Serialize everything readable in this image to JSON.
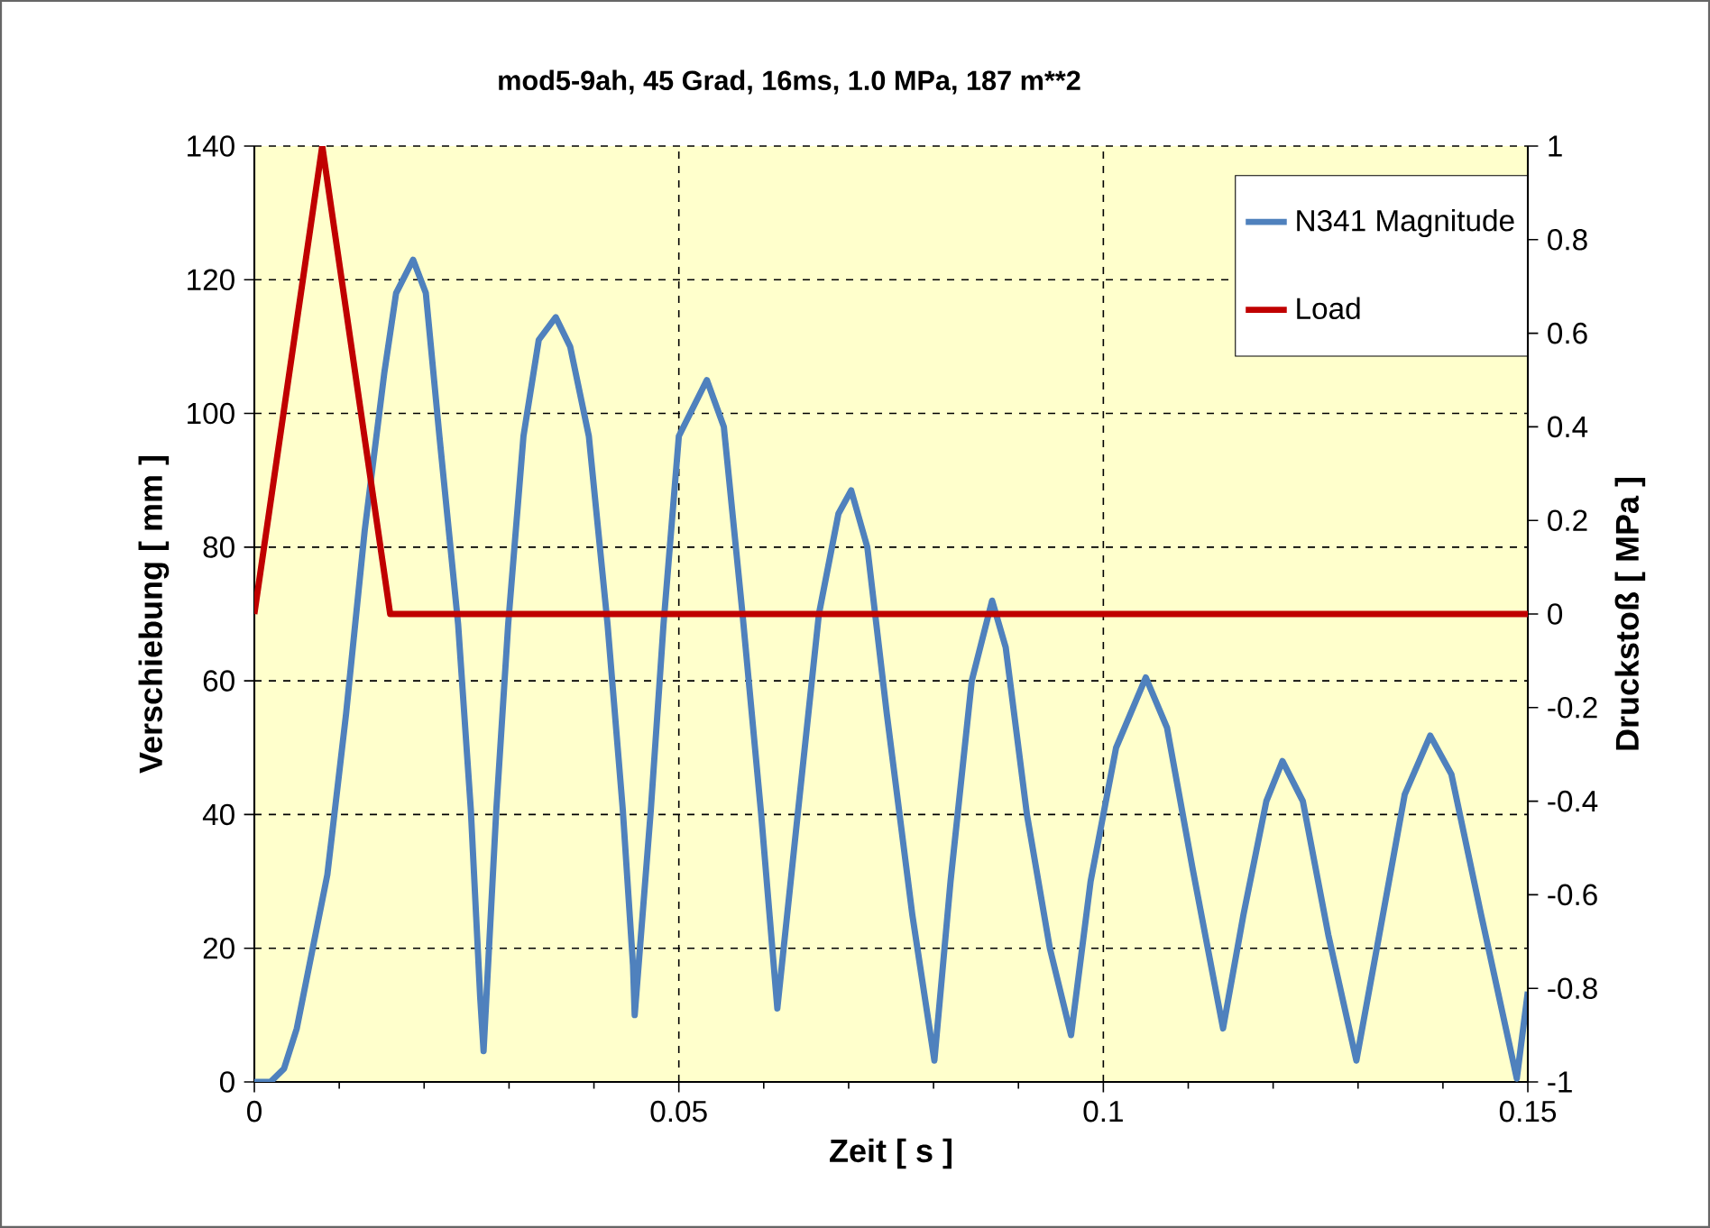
{
  "chart_data": {
    "type": "line",
    "title": "mod5-9ah, 45 Grad,  16ms, 1.0 MPa, 187 m**2",
    "xlabel": "Zeit [ s ]",
    "ylabel": "Verschiebung [ mm ]",
    "y2label": "Druckstoß [ MPa ]",
    "xlim": [
      0,
      0.15
    ],
    "xticks": [
      0,
      0.05,
      0.1,
      0.15
    ],
    "ylim": [
      0,
      140
    ],
    "yticks": [
      0,
      20,
      40,
      60,
      80,
      100,
      120,
      140
    ],
    "y2lim": [
      -1,
      1
    ],
    "y2ticks": [
      -1,
      -0.8,
      -0.6,
      -0.4,
      -0.2,
      0,
      0.2,
      0.4,
      0.6,
      0.8,
      1
    ],
    "grid": true,
    "legend": "top right",
    "marker": "none",
    "line_style": "solid",
    "series": [
      {
        "name": "N341 Magnitude",
        "color": "#4f81bd",
        "x": [
          0,
          0.0019,
          0.0035,
          0.005,
          0.0086,
          0.0108,
          0.013,
          0.0153,
          0.0167,
          0.0187,
          0.0202,
          0.0218,
          0.024,
          0.0255,
          0.0266,
          0.027,
          0.0285,
          0.0299,
          0.0317,
          0.0335,
          0.0355,
          0.0372,
          0.0394,
          0.0416,
          0.0434,
          0.0446,
          0.0448,
          0.0467,
          0.0482,
          0.05,
          0.0533,
          0.0553,
          0.0575,
          0.0597,
          0.0616,
          0.064,
          0.0665,
          0.0688,
          0.0703,
          0.0722,
          0.0745,
          0.0775,
          0.0801,
          0.082,
          0.0845,
          0.0869,
          0.0885,
          0.091,
          0.0937,
          0.0962,
          0.0985,
          0.1015,
          0.105,
          0.1075,
          0.1105,
          0.1141,
          0.1165,
          0.1192,
          0.1211,
          0.1235,
          0.1265,
          0.1298,
          0.1325,
          0.1355,
          0.1385,
          0.141,
          0.1445,
          0.1487,
          0.15
        ],
        "values": [
          0,
          0,
          2,
          8,
          31,
          55,
          82.5,
          106,
          118,
          123,
          118,
          96.6,
          68.5,
          40.7,
          12.7,
          4.6,
          40.7,
          68.5,
          96.6,
          111,
          114.4,
          110,
          96.6,
          68.5,
          40.7,
          17.5,
          10,
          40.7,
          68.5,
          96.6,
          105,
          98,
          70,
          40,
          11,
          40,
          70,
          85,
          88.5,
          80,
          55,
          25,
          3.2,
          30,
          60,
          72,
          65,
          40,
          20,
          7,
          30,
          50,
          60.5,
          53,
          32,
          8,
          25,
          42,
          48,
          42,
          22,
          3.2,
          22,
          43,
          51.8,
          46,
          25,
          0.5,
          13.5
        ]
      },
      {
        "name": "Load",
        "color": "#c00000",
        "axis": "y2",
        "x": [
          0,
          0.008,
          0.016,
          0.15
        ],
        "values": [
          0,
          1,
          0,
          0
        ]
      }
    ]
  }
}
